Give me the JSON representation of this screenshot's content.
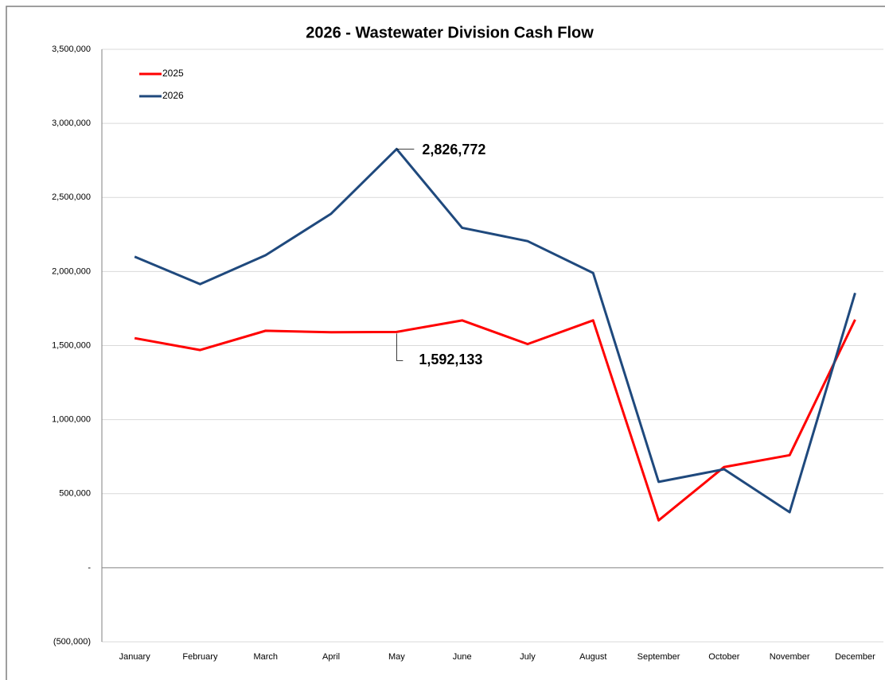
{
  "chart_data": {
    "type": "line",
    "title": "2026 - Wastewater Division Cash Flow",
    "categories": [
      "January",
      "February",
      "March",
      "April",
      "May",
      "June",
      "July",
      "August",
      "September",
      "October",
      "November",
      "December"
    ],
    "series": [
      {
        "name": "2025",
        "color": "#ff0000",
        "values": [
          1550000,
          1470000,
          1600000,
          1590000,
          1592133,
          1670000,
          1510000,
          1670000,
          320000,
          680000,
          760000,
          1675000
        ],
        "value_labels": [
          null,
          null,
          null,
          null,
          "1,592,133",
          null,
          null,
          null,
          null,
          null,
          null,
          null
        ]
      },
      {
        "name": "2026",
        "color": "#1f497d",
        "values": [
          2100000,
          1915000,
          2110000,
          2390000,
          2826772,
          2295000,
          2205000,
          1990000,
          580000,
          665000,
          375000,
          1855000
        ],
        "value_labels": [
          null,
          null,
          null,
          null,
          "2,826,772",
          null,
          null,
          null,
          null,
          null,
          null,
          null
        ]
      }
    ],
    "ylim": [
      -500000,
      3500000
    ],
    "yticks": [
      {
        "value": -500000,
        "label": "(500,000)"
      },
      {
        "value": 0,
        "label": "-"
      },
      {
        "value": 500000,
        "label": "500,000"
      },
      {
        "value": 1000000,
        "label": "1,000,000"
      },
      {
        "value": 1500000,
        "label": "1,500,000"
      },
      {
        "value": 2000000,
        "label": "2,000,000"
      },
      {
        "value": 2500000,
        "label": "2,500,000"
      },
      {
        "value": 3000000,
        "label": "3,000,000"
      },
      {
        "value": 3500000,
        "label": "3,500,000"
      }
    ],
    "grid": true,
    "legend": "top-left"
  }
}
